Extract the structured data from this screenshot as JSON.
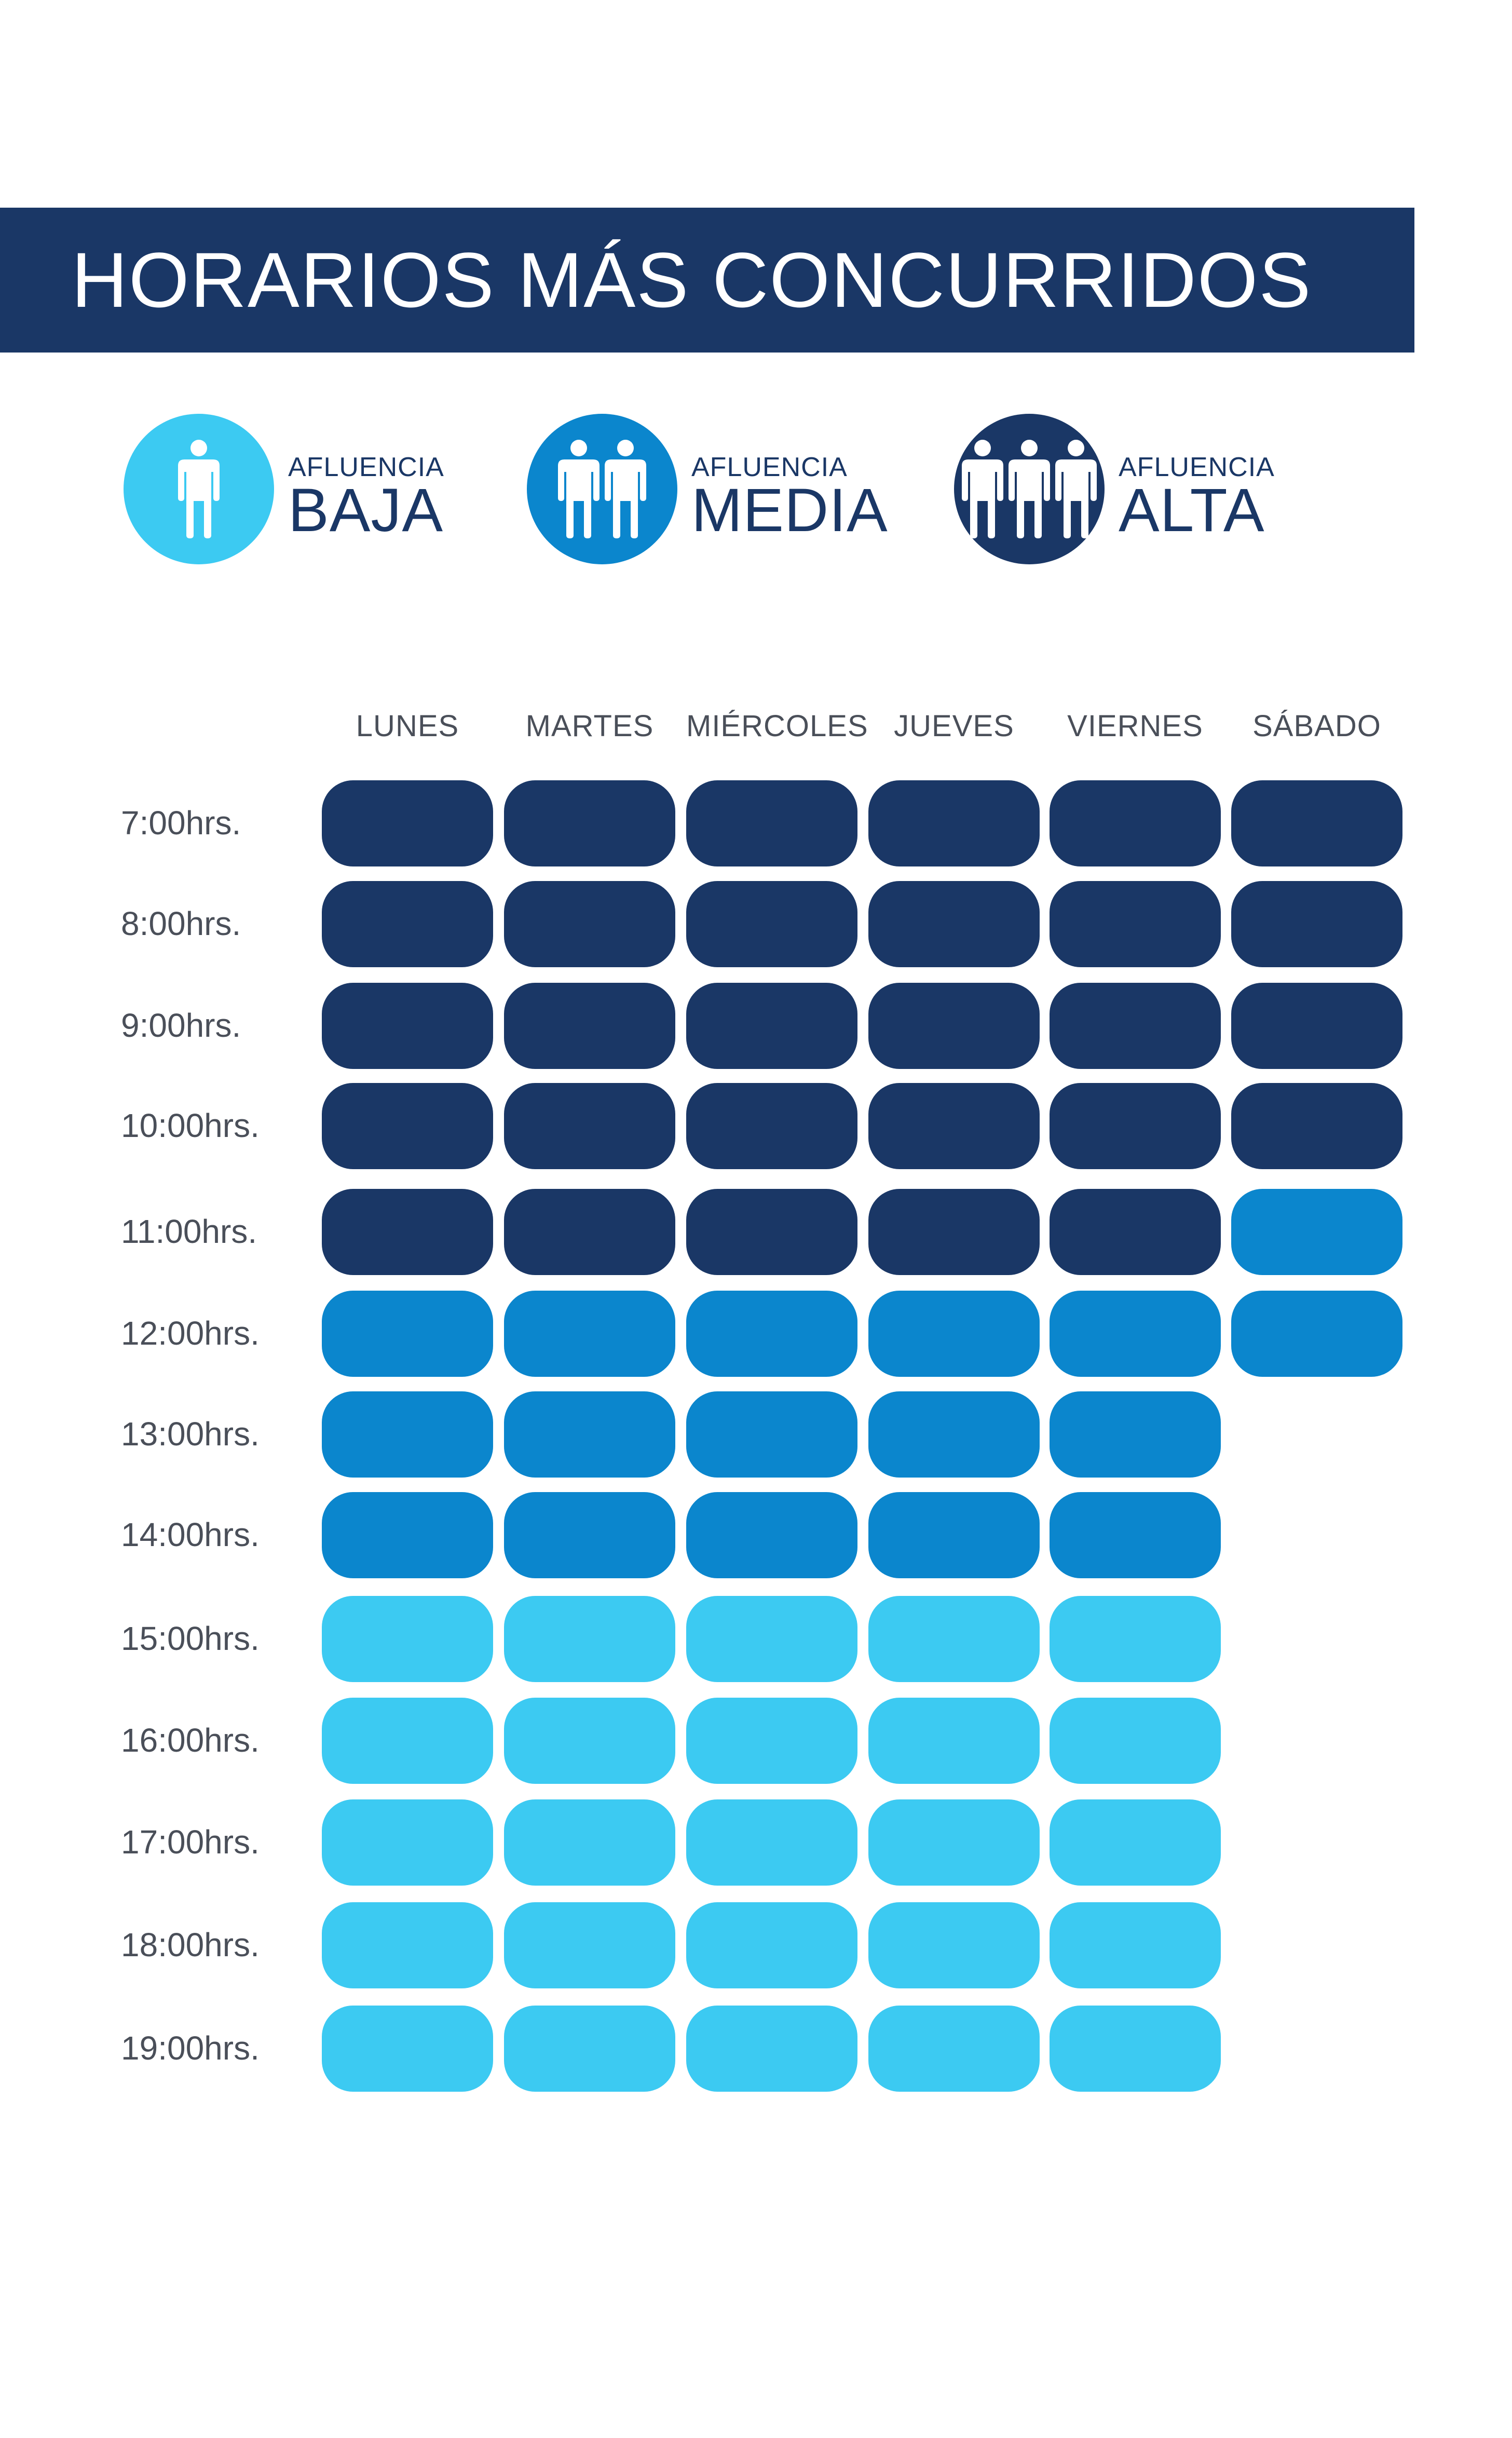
{
  "title": "HORARIOS MÁS CONCURRIDOS",
  "legend": [
    {
      "small": "AFLUENCIA",
      "big": "BAJA",
      "level": "baja",
      "people": 1,
      "icon": "person-icon",
      "color": "#3ccaf2",
      "text_color": "#1a3766"
    },
    {
      "small": "AFLUENCIA",
      "big": "MEDIA",
      "level": "media",
      "people": 2,
      "icon": "two-people-icon",
      "color": "#0b86cd",
      "text_color": "#1a3766"
    },
    {
      "small": "AFLUENCIA",
      "big": "ALTA",
      "level": "alta",
      "people": 3,
      "icon": "three-people-icon",
      "color": "#1a3766",
      "text_color": "#1a3766"
    }
  ],
  "colors": {
    "baja": "#3ccaf2",
    "media": "#0b86cd",
    "alta": "#1a3766"
  },
  "chart_data": {
    "type": "heatmap",
    "title": "HORARIOS MÁS CONCURRIDOS",
    "days": [
      "LUNES",
      "MARTES",
      "MIÉRCOLES",
      "JUEVES",
      "VIERNES",
      "SÁBADO"
    ],
    "times": [
      "7:00hrs.",
      "8:00hrs.",
      "9:00hrs.",
      "10:00hrs.",
      "11:00hrs.",
      "12:00hrs.",
      "13:00hrs.",
      "14:00hrs.",
      "15:00hrs.",
      "16:00hrs.",
      "17:00hrs.",
      "18:00hrs.",
      "19:00hrs."
    ],
    "levels": [
      [
        "alta",
        "alta",
        "alta",
        "alta",
        "alta",
        "alta"
      ],
      [
        "alta",
        "alta",
        "alta",
        "alta",
        "alta",
        "alta"
      ],
      [
        "alta",
        "alta",
        "alta",
        "alta",
        "alta",
        "alta"
      ],
      [
        "alta",
        "alta",
        "alta",
        "alta",
        "alta",
        "alta"
      ],
      [
        "alta",
        "alta",
        "alta",
        "alta",
        "alta",
        "media"
      ],
      [
        "media",
        "media",
        "media",
        "media",
        "media",
        "media"
      ],
      [
        "media",
        "media",
        "media",
        "media",
        "media",
        null
      ],
      [
        "media",
        "media",
        "media",
        "media",
        "media",
        null
      ],
      [
        "baja",
        "baja",
        "baja",
        "baja",
        "baja",
        null
      ],
      [
        "baja",
        "baja",
        "baja",
        "baja",
        "baja",
        null
      ],
      [
        "baja",
        "baja",
        "baja",
        "baja",
        "baja",
        null
      ],
      [
        "baja",
        "baja",
        "baja",
        "baja",
        "baja",
        null
      ],
      [
        "baja",
        "baja",
        "baja",
        "baja",
        "baja",
        null
      ]
    ]
  }
}
